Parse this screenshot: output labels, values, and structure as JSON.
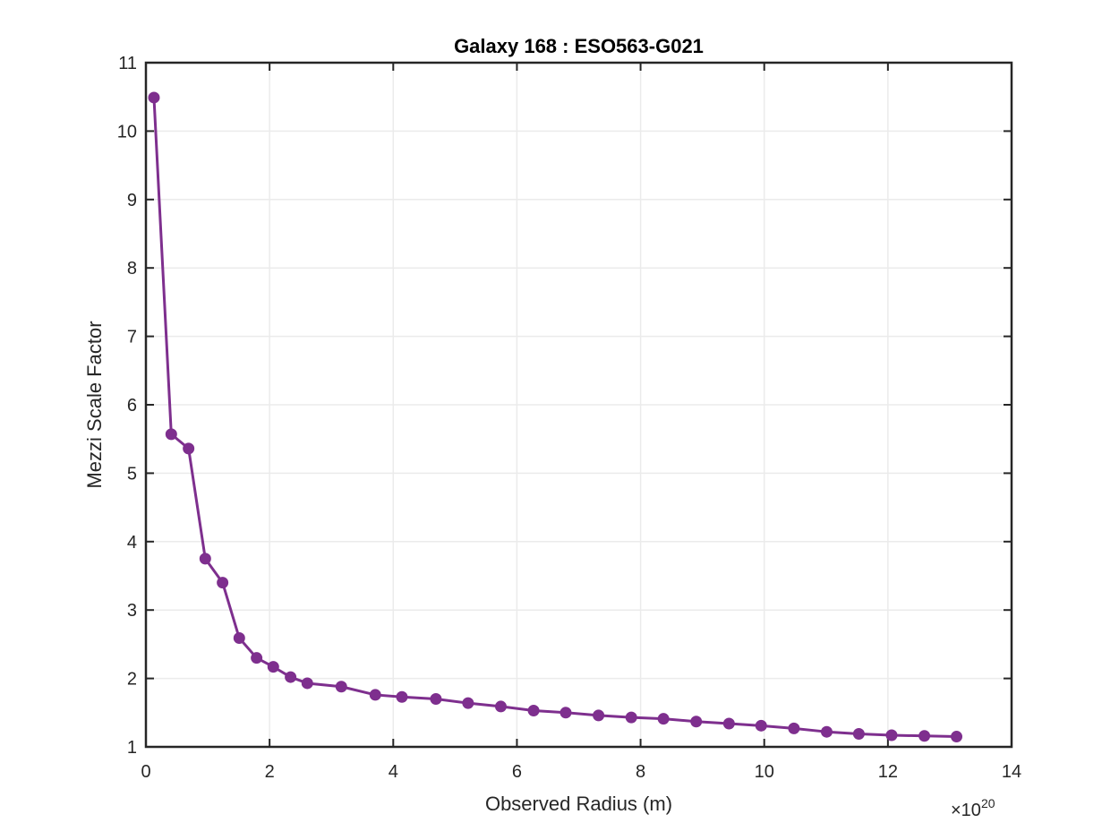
{
  "chart_data": {
    "type": "line",
    "title": "Galaxy 168 : ESO563-G021",
    "xlabel": "Observed Radius (m)",
    "ylabel": "Mezzi Scale Factor",
    "x_exponent_prefix": "×10",
    "x_exponent_power": "20",
    "x_multiplier": 1e+20,
    "xlim": [
      0,
      14
    ],
    "ylim": [
      1,
      11
    ],
    "xticks": [
      "0",
      "2",
      "4",
      "6",
      "8",
      "10",
      "12",
      "14"
    ],
    "yticks": [
      "1",
      "2",
      "3",
      "4",
      "5",
      "6",
      "7",
      "8",
      "9",
      "10",
      "11"
    ],
    "grid": true,
    "legend": "none",
    "series": [
      {
        "color": "#7E2F8E",
        "marker": "circle",
        "x": [
          0.13,
          0.41,
          0.69,
          0.96,
          1.24,
          1.51,
          1.79,
          2.06,
          2.34,
          2.61,
          3.16,
          3.71,
          4.14,
          4.69,
          5.21,
          5.74,
          6.27,
          6.79,
          7.32,
          7.85,
          8.37,
          8.9,
          9.43,
          9.95,
          10.48,
          11.01,
          11.53,
          12.06,
          12.59,
          13.11
        ],
        "y": [
          10.49,
          5.57,
          5.36,
          3.75,
          3.4,
          2.59,
          2.3,
          2.17,
          2.02,
          1.93,
          1.88,
          1.76,
          1.73,
          1.7,
          1.64,
          1.59,
          1.53,
          1.5,
          1.46,
          1.43,
          1.41,
          1.37,
          1.34,
          1.31,
          1.27,
          1.22,
          1.19,
          1.17,
          1.16,
          1.15
        ]
      }
    ]
  }
}
